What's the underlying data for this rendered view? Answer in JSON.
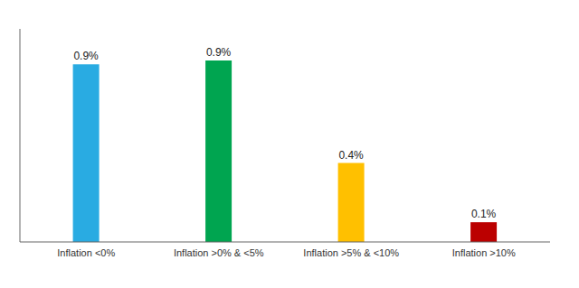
{
  "chart_data": {
    "type": "bar",
    "categories": [
      "Inflation <0%",
      "Inflation >0% & <5%",
      "Inflation >5% & <10%",
      "Inflation >10%"
    ],
    "values": [
      0.9,
      0.92,
      0.4,
      0.1
    ],
    "value_labels": [
      "0.9%",
      "0.9%",
      "0.4%",
      "0.1%"
    ],
    "colors": [
      "#29ABE2",
      "#00A550",
      "#FFC000",
      "#BB0000"
    ],
    "ylim": [
      0,
      1.08
    ],
    "tick_labels": "x"
  }
}
